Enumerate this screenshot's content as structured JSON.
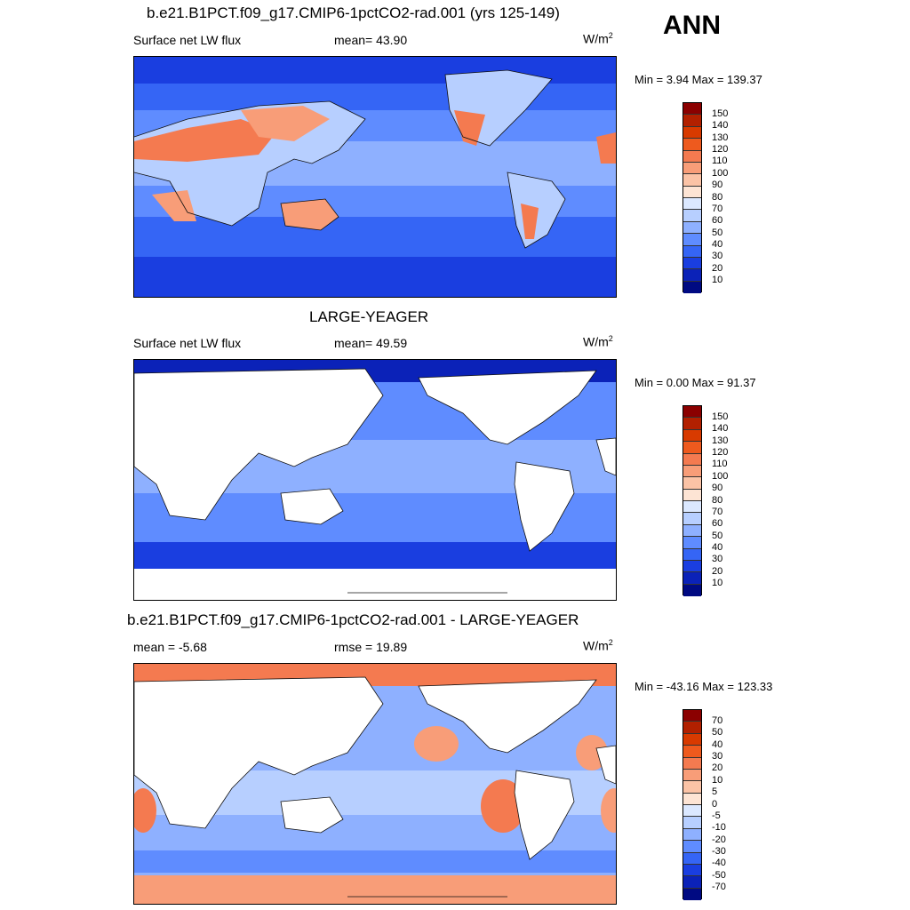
{
  "season": "ANN",
  "panels": [
    {
      "title": "b.e21.B1PCT.f09_g17.CMIP6-1pctCO2-rad.001 (yrs 125-149)",
      "left_label": "Surface net LW flux",
      "mid_label": "mean=  43.90",
      "units_base": "W/m",
      "units_exp": "2",
      "minmax": "Min =   3.94 Max = 139.37"
    },
    {
      "title": "LARGE-YEAGER",
      "left_label": "Surface net LW flux",
      "mid_label": "mean=  49.59",
      "units_base": "W/m",
      "units_exp": "2",
      "minmax": "Min =   0.00 Max =  91.37"
    },
    {
      "title": "b.e21.B1PCT.f09_g17.CMIP6-1pctCO2-rad.001 - LARGE-YEAGER",
      "left_label": "mean =  -5.68",
      "mid_label": "rmse =  19.89",
      "units_base": "W/m",
      "units_exp": "2",
      "minmax": "Min = -43.16 Max = 123.33"
    }
  ],
  "colorbars": {
    "abs_levels": [
      "150",
      "140",
      "130",
      "120",
      "110",
      "100",
      "90",
      "80",
      "70",
      "60",
      "50",
      "40",
      "30",
      "20",
      "10"
    ],
    "abs_colors": [
      "#8b0000",
      "#b22000",
      "#d83a00",
      "#ee5a1e",
      "#f47a50",
      "#f89d78",
      "#fbc3a6",
      "#fde4d4",
      "#dbe8ff",
      "#b7cfff",
      "#8eb0ff",
      "#5f8cff",
      "#3565f5",
      "#1a3ee0",
      "#0b22b8",
      "#000a82"
    ],
    "diff_levels": [
      "70",
      "50",
      "40",
      "30",
      "20",
      "10",
      "5",
      "0",
      "-5",
      "-10",
      "-20",
      "-30",
      "-40",
      "-50",
      "-70"
    ],
    "diff_colors": [
      "#8b0000",
      "#b22000",
      "#d83a00",
      "#ee5a1e",
      "#f47a50",
      "#f89d78",
      "#fbc3a6",
      "#fde4d4",
      "#dbe8ff",
      "#b7cfff",
      "#8eb0ff",
      "#5f8cff",
      "#3565f5",
      "#1a3ee0",
      "#0b22b8",
      "#000a82"
    ]
  },
  "colors": {
    "ocean_mid": "#6f9bff",
    "ocean_deep": "#2f5ef0",
    "polar": "#0b22b8",
    "land_hot": "#f47a50",
    "land": "#ffffff"
  }
}
